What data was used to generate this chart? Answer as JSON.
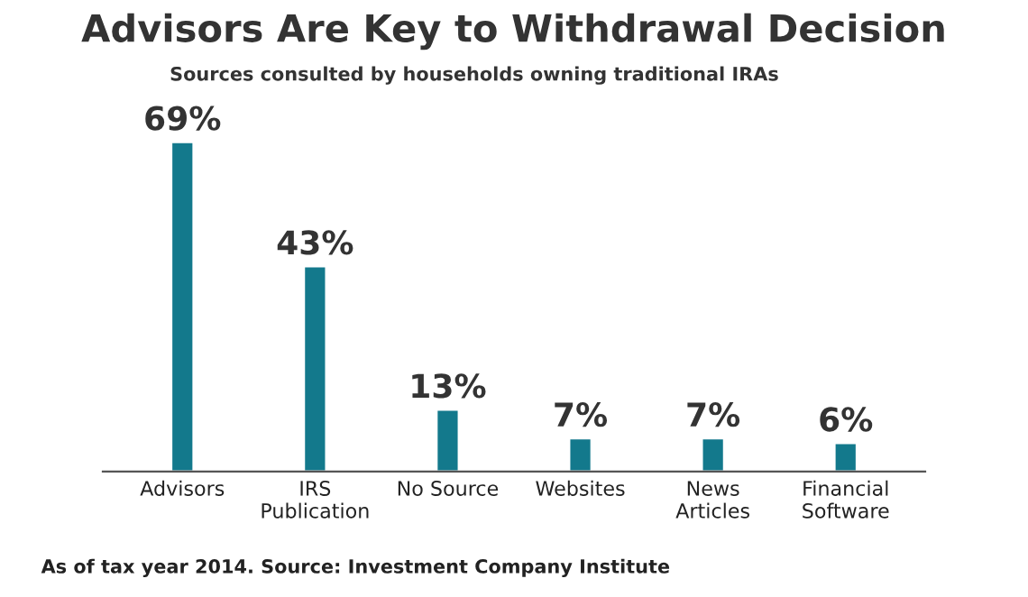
{
  "chart_data": {
    "type": "bar",
    "title": "Advisors Are Key to Withdrawal Decision",
    "subtitle": "Sources consulted by households owning traditional IRAs",
    "categories": [
      "Advisors",
      "IRS\nPublication",
      "No Source",
      "Websites",
      "News\nArticles",
      "Financial\nSoftware"
    ],
    "values": [
      69,
      43,
      13,
      7,
      7,
      6
    ],
    "color": "#13798c",
    "value_labels": [
      "69%",
      "43%",
      "13%",
      "7%",
      "7%",
      "6%"
    ],
    "tick_labels": "x",
    "grid": false,
    "legend": false,
    "annotations": [
      "As of tax year 2014. Source: Investment Company Institute"
    ]
  }
}
